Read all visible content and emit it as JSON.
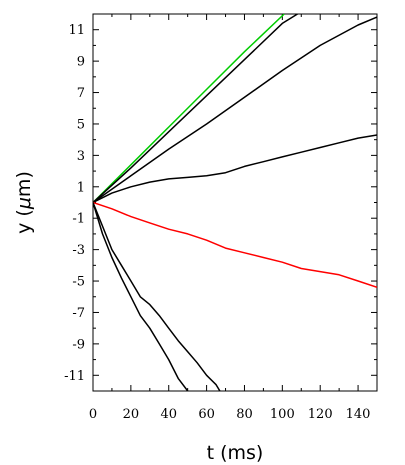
{
  "chart_data": {
    "type": "line",
    "xlabel": "t (ms)",
    "ylabel_parts": [
      "y (",
      "μ",
      "m)"
    ],
    "xlim": [
      0,
      150
    ],
    "ylim": [
      -12,
      12
    ],
    "x_ticks": [
      0,
      20,
      40,
      60,
      80,
      100,
      120,
      140
    ],
    "y_ticks": [
      11,
      9,
      7,
      5,
      3,
      1,
      -1,
      -3,
      -5,
      -7,
      -9,
      -11
    ],
    "y_tick_labels": [
      "11",
      "9",
      "7",
      "5",
      "3",
      "1",
      "-1",
      "-3",
      "-5",
      "-7",
      "-9",
      "-11"
    ],
    "grid": false,
    "series": [
      {
        "color": "#00cc00",
        "x": [
          0,
          20,
          40,
          60,
          80,
          101
        ],
        "y": [
          0,
          2.4,
          4.8,
          7.2,
          9.6,
          12
        ]
      },
      {
        "color": "#000000",
        "x": [
          0,
          20,
          40,
          60,
          80,
          100,
          108
        ],
        "y": [
          0,
          2.2,
          4.5,
          6.8,
          9.1,
          11.4,
          12
        ]
      },
      {
        "color": "#000000",
        "x": [
          0,
          20,
          40,
          60,
          80,
          100,
          120,
          140,
          150
        ],
        "y": [
          0,
          1.7,
          3.4,
          5.0,
          6.7,
          8.4,
          10.0,
          11.3,
          11.8
        ]
      },
      {
        "color": "#000000",
        "x": [
          0,
          10,
          20,
          30,
          40,
          50,
          60,
          70,
          80,
          90,
          100,
          110,
          120,
          130,
          140,
          150
        ],
        "y": [
          0,
          0.6,
          1.0,
          1.3,
          1.5,
          1.6,
          1.7,
          1.9,
          2.3,
          2.6,
          2.9,
          3.2,
          3.5,
          3.8,
          4.1,
          4.3
        ]
      },
      {
        "color": "#ff0000",
        "x": [
          0,
          10,
          20,
          30,
          40,
          50,
          60,
          70,
          80,
          90,
          100,
          110,
          120,
          130,
          140,
          150
        ],
        "y": [
          0,
          -0.4,
          -0.9,
          -1.3,
          -1.7,
          -2.0,
          -2.4,
          -2.9,
          -3.2,
          -3.5,
          -3.8,
          -4.2,
          -4.4,
          -4.6,
          -5.0,
          -5.4
        ]
      },
      {
        "color": "#000000",
        "x": [
          0,
          5,
          10,
          15,
          20,
          25,
          30,
          35,
          40,
          45,
          50,
          55,
          60,
          65,
          67
        ],
        "y": [
          0,
          -1.5,
          -3.0,
          -4.0,
          -5.0,
          -6.0,
          -6.5,
          -7.2,
          -8.0,
          -8.8,
          -9.5,
          -10.2,
          -11.0,
          -11.6,
          -12
        ]
      },
      {
        "color": "#000000",
        "x": [
          0,
          5,
          10,
          15,
          20,
          25,
          30,
          35,
          40,
          45,
          50
        ],
        "y": [
          0,
          -2.0,
          -3.5,
          -4.8,
          -6.0,
          -7.2,
          -8.0,
          -9.0,
          -10.0,
          -11.2,
          -12
        ]
      }
    ]
  }
}
